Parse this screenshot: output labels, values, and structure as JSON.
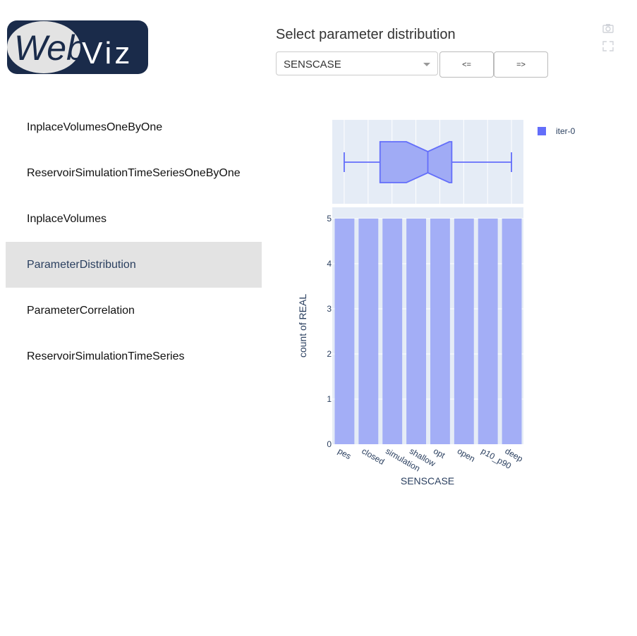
{
  "logo": {
    "text_part1": "Web",
    "text_part2": "Viz"
  },
  "sidebar": {
    "items": [
      {
        "label": "InplaceVolumesOneByOne",
        "active": false
      },
      {
        "label": "ReservoirSimulationTimeSeriesOneByOne",
        "active": false
      },
      {
        "label": "InplaceVolumes",
        "active": false
      },
      {
        "label": "ParameterDistribution",
        "active": true
      },
      {
        "label": "ParameterCorrelation",
        "active": false
      },
      {
        "label": "ReservoirSimulationTimeSeries",
        "active": false
      }
    ]
  },
  "controls": {
    "title": "Select parameter distribution",
    "selected_parameter": "SENSCASE",
    "prev_label": "<=",
    "next_label": "=>"
  },
  "modebar": {
    "icons": [
      "camera-icon",
      "autoscale-icon"
    ]
  },
  "colors": {
    "bar_fill": "#a3aef6",
    "box_line": "#636efa",
    "box_fill": "#a0abf5",
    "plot_bg": "#e5ecf6"
  },
  "chart_data": {
    "type": "bar",
    "categories": [
      "pes",
      "closed",
      "simulation",
      "shallow",
      "opt",
      "open",
      "p10_p90",
      "deep"
    ],
    "series": [
      {
        "name": "iter-0",
        "values": [
          5,
          5,
          5,
          5,
          5,
          5,
          5,
          5
        ]
      }
    ],
    "xlabel": "SENSCASE",
    "ylabel": "count of REAL",
    "ylim": [
      0,
      5.25
    ],
    "yticks": [
      0,
      1,
      2,
      3,
      4,
      5
    ],
    "legend_position": "top-right",
    "marginal": {
      "type": "box",
      "notched": true,
      "min": 0.5,
      "q1": 2,
      "median": 4,
      "q3": 5,
      "max": 7.5
    }
  }
}
